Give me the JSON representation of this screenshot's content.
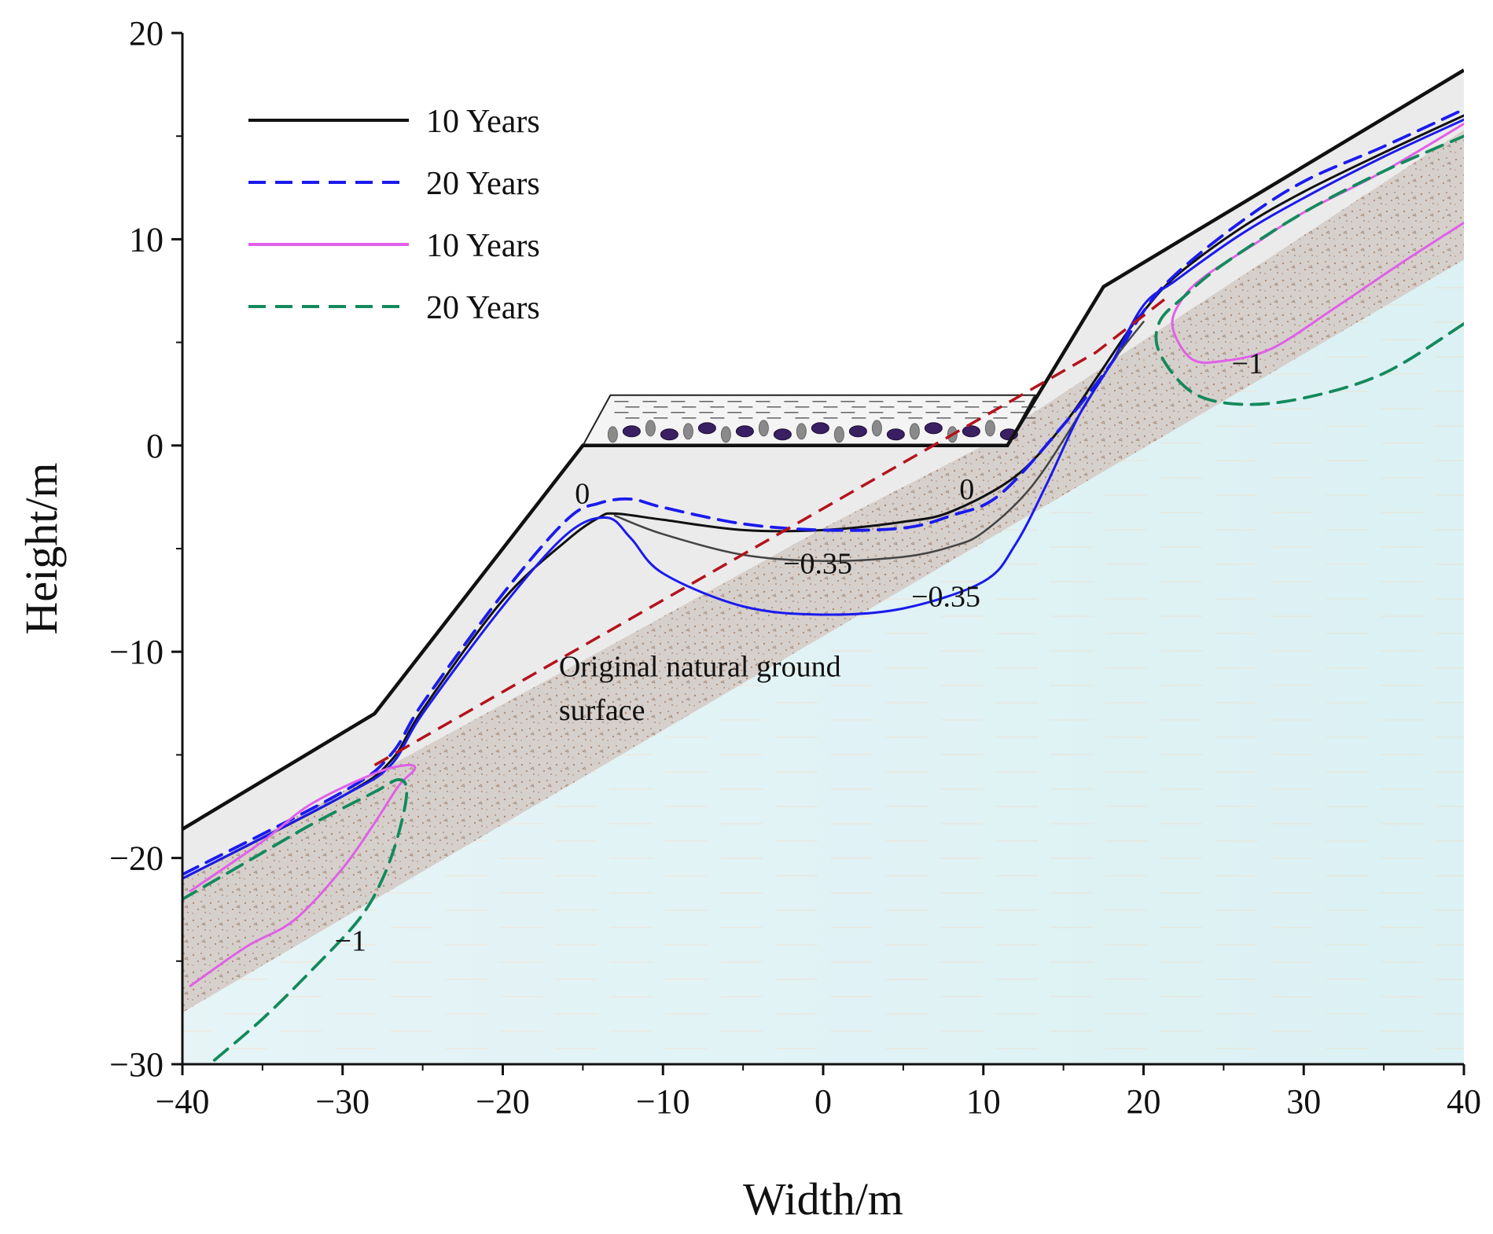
{
  "chart_data": {
    "type": "line",
    "xlabel": "Width/m",
    "ylabel": "Height/m",
    "xlim": [
      -40,
      40
    ],
    "ylim": [
      -30,
      20
    ],
    "xticks": [
      -40,
      -30,
      -20,
      -10,
      0,
      10,
      20,
      30,
      40
    ],
    "yticks": [
      -30,
      -20,
      -10,
      0,
      10,
      20
    ],
    "xtick_labels": [
      "−40",
      "−30",
      "−20",
      "−10",
      "0",
      "10",
      "20",
      "30",
      "40"
    ],
    "ytick_labels": [
      "−30",
      "−20",
      "−10",
      "0",
      "10",
      "20"
    ],
    "legend_position": "top-left",
    "legend": [
      {
        "label": "10 Years",
        "color": "#111111",
        "style": "solid"
      },
      {
        "label": "20 Years",
        "color": "#1a1aee",
        "style": "dashed"
      },
      {
        "label": "10 Years",
        "color": "#e060e8",
        "style": "solid"
      },
      {
        "label": "20 Years",
        "color": "#138a5c",
        "style": "dashed"
      }
    ],
    "annotations": [
      {
        "text": "0",
        "x": -15.5,
        "y": -2.8
      },
      {
        "text": "0",
        "x": 8.5,
        "y": -2.6
      },
      {
        "text": "−0.35",
        "x": -2.5,
        "y": -6.2
      },
      {
        "text": "−0.35",
        "x": 5.5,
        "y": -7.8
      },
      {
        "text": "−1",
        "x": 25.5,
        "y": 3.5
      },
      {
        "text": "−1",
        "x": -30.5,
        "y": -24.5
      },
      {
        "text": "Original natural ground",
        "x": -16.5,
        "y": -11.2
      },
      {
        "text": "surface",
        "x": -16.5,
        "y": -13.3
      }
    ],
    "surfaces": {
      "embankment_surface": [
        [
          -40,
          -18.6
        ],
        [
          -28,
          -13
        ],
        [
          -15,
          0
        ],
        [
          11.5,
          0
        ],
        [
          17.5,
          7.7
        ],
        [
          40,
          18.2
        ]
      ],
      "original_ground_surface": [
        [
          -28,
          -15.5
        ],
        [
          17,
          4.5
        ],
        [
          21.5,
          7.2
        ]
      ],
      "layer_boundary_upper": [
        [
          -40,
          -21
        ],
        [
          -27,
          -15.5
        ],
        [
          -14,
          -10
        ],
        [
          0,
          -4
        ],
        [
          10,
          0
        ],
        [
          40,
          15.3
        ]
      ],
      "layer_boundary_lower": [
        [
          -40,
          -27.5
        ],
        [
          40,
          9
        ]
      ]
    },
    "series": [
      {
        "name": "10 Years",
        "color": "#111111",
        "style": "solid",
        "x": [
          -40,
          -30,
          -27,
          -25,
          -20,
          -16,
          -14,
          -13,
          -10,
          -5,
          0,
          5,
          8,
          12,
          15,
          17,
          19,
          20,
          22,
          26,
          30,
          35,
          40
        ],
        "y": [
          -21,
          -17,
          -15.3,
          -12.8,
          -7.5,
          -4.6,
          -3.5,
          -3.3,
          -3.6,
          -4.1,
          -4.1,
          -3.7,
          -3.2,
          -1.5,
          1,
          3.2,
          5.5,
          6.5,
          8.2,
          10.5,
          12.3,
          14.2,
          16
        ]
      },
      {
        "name": "20 Years",
        "color": "#1a1aee",
        "style": "dashed",
        "x": [
          -40,
          -30,
          -27,
          -25,
          -20,
          -16,
          -14,
          -12,
          -10,
          -5,
          0,
          5,
          8,
          11,
          15,
          18,
          20,
          22,
          26,
          30,
          35,
          40
        ],
        "y": [
          -20.8,
          -16.8,
          -15,
          -12.5,
          -7.2,
          -3.6,
          -2.8,
          -2.6,
          -3,
          -3.8,
          -4.1,
          -4,
          -3.4,
          -2.4,
          1,
          4,
          6.5,
          8.3,
          10.8,
          12.8,
          14.5,
          16.3
        ]
      },
      {
        "name": "10 Years (−0.35)",
        "color": "#444444",
        "style": "solid",
        "x": [
          -13,
          -10,
          -5,
          0,
          5,
          8,
          10,
          13,
          16,
          18,
          20
        ],
        "y": [
          -3.4,
          -4.3,
          -5.3,
          -5.6,
          -5.4,
          -4.9,
          -4.2,
          -2,
          1.5,
          4,
          6
        ]
      },
      {
        "name": "20 Years (−0.35)",
        "color": "#1a1aee",
        "style": "solid",
        "x": [
          -40,
          -30,
          -27,
          -25,
          -20,
          -16,
          -13.5,
          -12,
          -10,
          -5,
          0,
          5,
          10,
          12,
          14,
          16,
          18,
          20,
          22,
          26,
          30,
          35,
          40
        ],
        "y": [
          -21,
          -17,
          -15.5,
          -13,
          -7.8,
          -4.3,
          -3.5,
          -4.5,
          -6.2,
          -7.8,
          -8.2,
          -7.9,
          -6.6,
          -4.8,
          -1.8,
          1.5,
          4,
          6.8,
          8,
          10.2,
          12,
          14,
          15.8
        ]
      },
      {
        "name": "10 Years (−1)",
        "color": "#e060e8",
        "style": "solid",
        "x": [
          -39.5,
          -36,
          -33,
          -30,
          -28,
          -26.5,
          -25.5,
          -26,
          -28,
          -32,
          -35,
          -39.5,
          null,
          40,
          36,
          32,
          28,
          25,
          23,
          21.8,
          22.5,
          24,
          27,
          30,
          35,
          40
        ],
        "y": [
          -26.2,
          -24.3,
          -23,
          -20.5,
          -18.3,
          -16.5,
          -15.7,
          -15.5,
          -15.9,
          -17.4,
          -19.2,
          -21.6,
          null,
          10.8,
          8.8,
          6.7,
          4.7,
          4.1,
          4.2,
          5.8,
          7.2,
          8.3,
          9.8,
          11.3,
          13.3,
          15.6
        ]
      },
      {
        "name": "20 Years (−1)",
        "color": "#138a5c",
        "style": "dashed",
        "x": [
          -38,
          -35,
          -32,
          -29,
          -27.5,
          -26.5,
          -26,
          -26.5,
          -28,
          -32,
          -36,
          -40,
          null,
          40,
          35,
          30,
          26,
          23,
          21,
          21,
          22.5,
          25,
          30,
          35,
          40
        ],
        "y": [
          -29.8,
          -27.8,
          -25.5,
          -23,
          -21,
          -18.8,
          -16.8,
          -16.2,
          -16.8,
          -18.4,
          -20.2,
          -22,
          null,
          5.9,
          3.5,
          2.3,
          2,
          2.6,
          4.5,
          6,
          7.2,
          8.8,
          11.3,
          13.3,
          15
        ]
      }
    ]
  }
}
